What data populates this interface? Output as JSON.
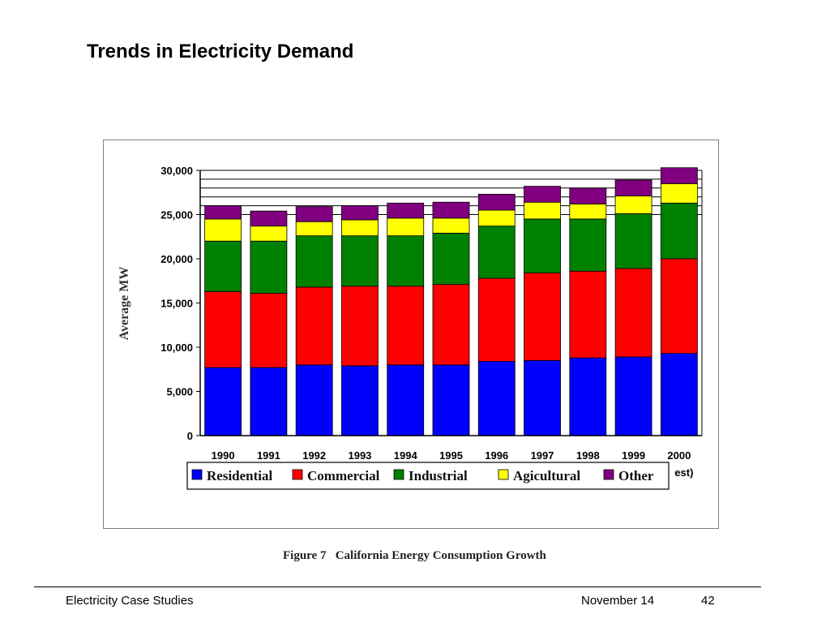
{
  "slide": {
    "title": "Trends in Electricity Demand",
    "caption": "Figure 7   California Energy Consumption Growth"
  },
  "footer": {
    "left": "Electricity Case Studies",
    "date": "November 14",
    "page": "42"
  },
  "chart_data": {
    "type": "bar",
    "stacked": true,
    "title": "",
    "xlabel": "",
    "ylabel": "Average MW",
    "ylim": [
      0,
      30000
    ],
    "yticks": [
      "0",
      "5,000",
      "10,000",
      "15,000",
      "20,000",
      "25,000",
      "30,000"
    ],
    "ytick_values": [
      0,
      5000,
      10000,
      15000,
      20000,
      25000,
      30000
    ],
    "categories": [
      "1990",
      "1991",
      "1992",
      "1993",
      "1994",
      "1995",
      "1996",
      "1997",
      "1998",
      "1999",
      "2000"
    ],
    "partial_label": "est)",
    "grid": true,
    "legend_position": "bottom",
    "series": [
      {
        "name": "Residential",
        "color": "#0000ff",
        "values": [
          7700,
          7700,
          8000,
          7900,
          8000,
          8000,
          8400,
          8500,
          8800,
          8900,
          9300
        ]
      },
      {
        "name": "Commercial",
        "color": "#ff0000",
        "values": [
          8600,
          8400,
          8800,
          9000,
          8900,
          9100,
          9400,
          9900,
          9800,
          10000,
          10700
        ]
      },
      {
        "name": "Industrial",
        "color": "#008000",
        "values": [
          5700,
          5900,
          5800,
          5700,
          5700,
          5800,
          5900,
          6100,
          5900,
          6200,
          6300
        ]
      },
      {
        "name": "Agicultural",
        "color": "#ffff00",
        "values": [
          2500,
          1700,
          1600,
          1800,
          2000,
          1700,
          1800,
          1900,
          1700,
          2000,
          2200
        ]
      },
      {
        "name": "Other",
        "color": "#800080",
        "values": [
          1500,
          1700,
          1700,
          1600,
          1700,
          1800,
          1800,
          1800,
          1800,
          1800,
          1800
        ]
      }
    ]
  }
}
